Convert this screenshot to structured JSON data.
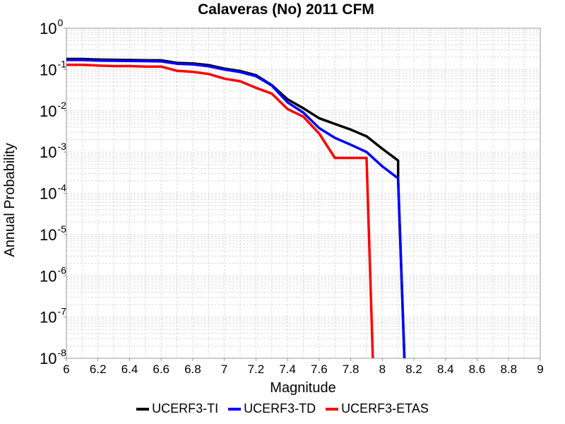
{
  "chart_data": {
    "type": "line",
    "title": "Calaveras (No) 2011 CFM",
    "xlabel": "Magnitude",
    "ylabel": "Annual Probability",
    "xlim": [
      6,
      9
    ],
    "ylim": [
      1e-08,
      1
    ],
    "yscale": "log",
    "grid": true,
    "legend_position": "bottom",
    "x_ticks": [
      "6",
      "6.2",
      "6.4",
      "6.6",
      "6.8",
      "7",
      "7.2",
      "7.4",
      "7.6",
      "7.8",
      "8",
      "8.2",
      "8.4",
      "8.6",
      "8.8",
      "9"
    ],
    "y_ticks": [
      {
        "base": "10",
        "exp": "0"
      },
      {
        "base": "10",
        "exp": "-1"
      },
      {
        "base": "10",
        "exp": "-2"
      },
      {
        "base": "10",
        "exp": "-3"
      },
      {
        "base": "10",
        "exp": "-4"
      },
      {
        "base": "10",
        "exp": "-5"
      },
      {
        "base": "10",
        "exp": "-6"
      },
      {
        "base": "10",
        "exp": "-7"
      },
      {
        "base": "10",
        "exp": "-8"
      }
    ],
    "series": [
      {
        "name": "UCERF3-TI",
        "color": "#000000",
        "x": [
          6.0,
          6.1,
          6.2,
          6.3,
          6.4,
          6.5,
          6.6,
          6.7,
          6.8,
          6.9,
          7.0,
          7.1,
          7.2,
          7.3,
          7.4,
          7.5,
          7.6,
          7.7,
          7.8,
          7.9,
          8.0,
          8.1,
          8.1,
          8.14
        ],
        "y": [
          0.18,
          0.18,
          0.175,
          0.172,
          0.17,
          0.168,
          0.167,
          0.145,
          0.14,
          0.128,
          0.105,
          0.092,
          0.073,
          0.042,
          0.019,
          0.0115,
          0.0066,
          0.0048,
          0.0035,
          0.0024,
          0.0012,
          0.00062,
          0.0002,
          1e-08
        ]
      },
      {
        "name": "UCERF3-TD",
        "color": "#0000ff",
        "x": [
          6.0,
          6.1,
          6.2,
          6.3,
          6.4,
          6.5,
          6.6,
          6.7,
          6.8,
          6.9,
          7.0,
          7.1,
          7.2,
          7.3,
          7.4,
          7.5,
          7.6,
          7.7,
          7.8,
          7.9,
          8.0,
          8.1,
          8.14
        ],
        "y": [
          0.17,
          0.17,
          0.165,
          0.163,
          0.161,
          0.16,
          0.157,
          0.138,
          0.133,
          0.12,
          0.1,
          0.087,
          0.069,
          0.041,
          0.016,
          0.009,
          0.0038,
          0.0022,
          0.0015,
          0.001,
          0.00045,
          0.00023,
          1e-08
        ]
      },
      {
        "name": "UCERF3-ETAS",
        "color": "#ff0000",
        "x": [
          6.0,
          6.1,
          6.2,
          6.3,
          6.4,
          6.5,
          6.6,
          6.7,
          6.8,
          6.9,
          7.0,
          7.1,
          7.2,
          7.3,
          7.4,
          7.5,
          7.6,
          7.7,
          7.8,
          7.9,
          7.9,
          7.94
        ],
        "y": [
          0.13,
          0.13,
          0.125,
          0.121,
          0.121,
          0.118,
          0.118,
          0.093,
          0.088,
          0.078,
          0.06,
          0.052,
          0.036,
          0.026,
          0.011,
          0.0072,
          0.0028,
          0.00072,
          0.00072,
          0.00072,
          0.00072,
          1e-08
        ]
      }
    ]
  }
}
